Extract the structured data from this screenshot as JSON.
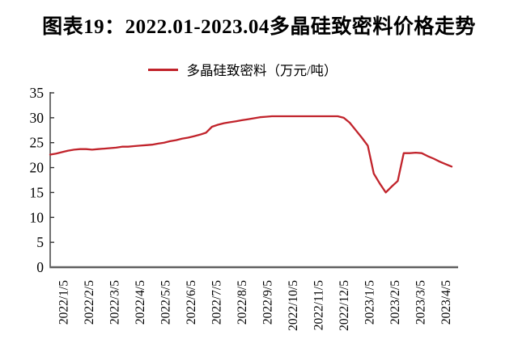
{
  "title": "图表19：2022.01-2023.04多晶硅致密料价格走势",
  "legend": {
    "label": "多晶硅致密料（万元/吨）"
  },
  "colors": {
    "series_red": "#c1232b",
    "y_axis": "#333333",
    "x_axis": "#606060",
    "text": "#000000",
    "background": "#ffffff"
  },
  "chart_data": {
    "type": "line",
    "title": "图表19：2022.01-2023.04多晶硅致密料价格走势",
    "xlabel": "",
    "ylabel": "",
    "unit": "万元/吨",
    "ylim": [
      0,
      35
    ],
    "yticks": [
      0,
      5,
      10,
      15,
      20,
      25,
      30,
      35
    ],
    "grid": false,
    "legend_position": "top",
    "categories": [
      "2022/1/5",
      "2022/2/5",
      "2022/3/5",
      "2022/4/5",
      "2022/5/5",
      "2022/6/5",
      "2022/7/5",
      "2022/8/5",
      "2022/9/5",
      "2022/10/5",
      "2022/11/5",
      "2022/12/5",
      "2023/1/5",
      "2023/2/5",
      "2023/3/5",
      "2023/4/5"
    ],
    "series": [
      {
        "name": "多晶硅致密料（万元/吨）",
        "frequency": "weekly",
        "values": [
          22.6,
          22.8,
          23.1,
          23.4,
          23.6,
          23.7,
          23.7,
          23.6,
          23.7,
          23.8,
          23.9,
          24.0,
          24.2,
          24.2,
          24.3,
          24.4,
          24.5,
          24.6,
          24.8,
          25.0,
          25.3,
          25.5,
          25.8,
          26.0,
          26.3,
          26.6,
          27.0,
          28.2,
          28.6,
          28.9,
          29.1,
          29.3,
          29.5,
          29.7,
          29.9,
          30.1,
          30.2,
          30.3,
          30.3,
          30.3,
          30.3,
          30.3,
          30.3,
          30.3,
          30.3,
          30.3,
          30.3,
          30.3,
          30.3,
          30.0,
          29.0,
          27.5,
          26.0,
          24.4,
          18.8,
          16.8,
          15.0,
          16.2,
          17.3,
          22.9,
          22.9,
          23.0,
          22.9,
          22.3,
          21.8,
          21.2,
          20.7,
          20.2
        ]
      }
    ]
  }
}
